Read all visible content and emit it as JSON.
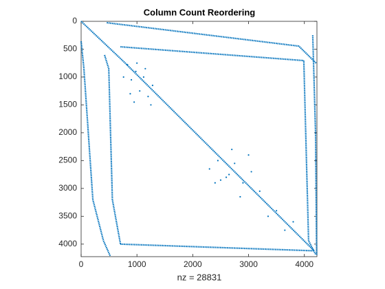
{
  "chart_data": {
    "type": "spy",
    "title": "Column Count Reordering",
    "x_label": "nz = 28831",
    "xlim": [
      0,
      4225
    ],
    "ylim": [
      0,
      4225
    ],
    "y_reversed": true,
    "xticks": [
      0,
      1000,
      2000,
      3000,
      4000
    ],
    "yticks": [
      0,
      500,
      1000,
      1500,
      2000,
      2500,
      3000,
      3500,
      4000
    ],
    "color": "#0072bd",
    "series": [
      {
        "style": "line",
        "x": [
          0,
          770,
          4175
        ],
        "values": [
          0,
          730,
          4120
        ]
      },
      {
        "style": "line",
        "x": [
          460,
          3900,
          4210
        ],
        "values": [
          25,
          445,
          750
        ]
      },
      {
        "style": "line",
        "x": [
          705,
          3990,
          4075,
          4200
        ],
        "values": [
          457,
          705,
          3940,
          4180
        ]
      },
      {
        "style": "line",
        "x": [
          4150,
          4200,
          4220
        ],
        "values": [
          250,
          2000,
          4200
        ]
      },
      {
        "style": "line",
        "x": [
          0,
          50,
          210,
          400,
          520
        ],
        "values": [
          360,
          850,
          3200,
          3940,
          4210
        ]
      },
      {
        "style": "line",
        "x": [
          420,
          495,
          560,
          705
        ],
        "values": [
          605,
          850,
          3200,
          4000
        ]
      },
      {
        "style": "line",
        "x": [
          705,
          4175
        ],
        "values": [
          4000,
          4120
        ]
      },
      {
        "style": "points",
        "x": [
          760,
          830,
          900,
          980,
          1050,
          1120,
          1200,
          1280,
          880,
          1000,
          1150,
          950,
          1250,
          2300,
          2450,
          2600,
          2750,
          2900,
          3050,
          3200,
          2500,
          2700,
          2850,
          3000,
          2400,
          2650,
          3350,
          3500,
          3650,
          3800
        ],
        "values": [
          1000,
          780,
          1050,
          900,
          1250,
          1000,
          1350,
          1150,
          1300,
          750,
          850,
          1450,
          1500,
          2650,
          2500,
          2800,
          2550,
          2900,
          2700,
          3050,
          2850,
          2300,
          3150,
          2400,
          2900,
          2750,
          3500,
          3400,
          3750,
          3600
        ]
      }
    ]
  }
}
